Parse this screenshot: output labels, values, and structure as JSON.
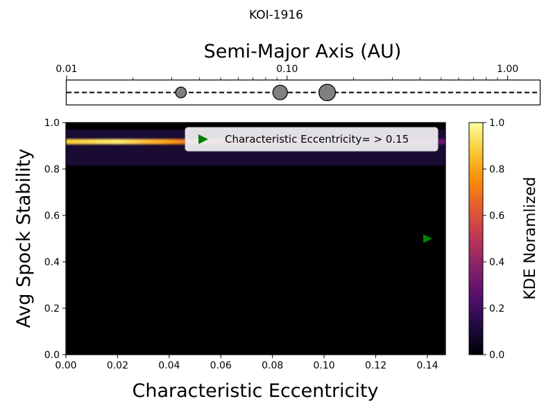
{
  "suptitle": "KOI-1916",
  "colors": {
    "background": "#ffffff",
    "panel": "#000000",
    "planet_fill": "#808080",
    "marker": "#008000",
    "legend_bg": "#f3f3f3"
  },
  "chart_data": [
    {
      "type": "scatter",
      "id": "semimajor_axis_strip",
      "title": "Semi-Major Axis (AU)",
      "x_scale": "log",
      "xlim": [
        0.01,
        1.4
      ],
      "x_ticks": [
        0.01,
        0.1,
        1.0
      ],
      "x_tick_labels": [
        "0.01",
        "0.10",
        "1.00"
      ],
      "y_ticks_visible": false,
      "reference_line": "dashed",
      "planets": [
        {
          "x": 0.033,
          "relative_size": 0.55
        },
        {
          "x": 0.093,
          "relative_size": 0.75
        },
        {
          "x": 0.152,
          "relative_size": 0.85
        }
      ]
    },
    {
      "type": "heatmap",
      "id": "stability_kde",
      "xlabel": "Characteristic Eccentricity",
      "ylabel": "Avg Spock Stability",
      "xlim": [
        0.0,
        0.147
      ],
      "ylim": [
        0.0,
        1.0
      ],
      "x_ticks": [
        0.0,
        0.02,
        0.04,
        0.06,
        0.08,
        0.1,
        0.12,
        0.14
      ],
      "x_tick_labels": [
        "0.00",
        "0.02",
        "0.04",
        "0.06",
        "0.08",
        "0.10",
        "0.12",
        "0.14"
      ],
      "y_ticks": [
        0.0,
        0.2,
        0.4,
        0.6,
        0.8,
        1.0
      ],
      "y_tick_labels": [
        "0.0",
        "0.2",
        "0.4",
        "0.6",
        "0.8",
        "1.0"
      ],
      "colormap": "inferno",
      "kde_band": {
        "y_range": [
          0.815,
          0.97
        ],
        "peak_y": 0.918,
        "intensity_profile": [
          {
            "x": 0.0,
            "value": 0.88
          },
          {
            "x": 0.02,
            "value": 0.95
          },
          {
            "x": 0.04,
            "value": 0.78
          },
          {
            "x": 0.06,
            "value": 0.5
          },
          {
            "x": 0.08,
            "value": 0.35
          },
          {
            "x": 0.1,
            "value": 0.28
          },
          {
            "x": 0.12,
            "value": 0.26
          },
          {
            "x": 0.147,
            "value": 0.3
          }
        ]
      },
      "markers": [
        {
          "x": 0.14,
          "y": 0.5,
          "symbol": "triangle-right",
          "color": "#008000"
        }
      ],
      "legend": {
        "position": "top-right",
        "entries": [
          {
            "label": "Characteristic Eccentricity= > 0.15",
            "symbol": "triangle-right",
            "color": "#008000"
          }
        ]
      },
      "colorbar": {
        "label": "KDE Noramlized",
        "range": [
          0.0,
          1.0
        ],
        "ticks": [
          0.0,
          0.2,
          0.4,
          0.6,
          0.8,
          1.0
        ],
        "tick_labels": [
          "0.0",
          "0.2",
          "0.4",
          "0.6",
          "0.8",
          "1.0"
        ]
      }
    }
  ]
}
